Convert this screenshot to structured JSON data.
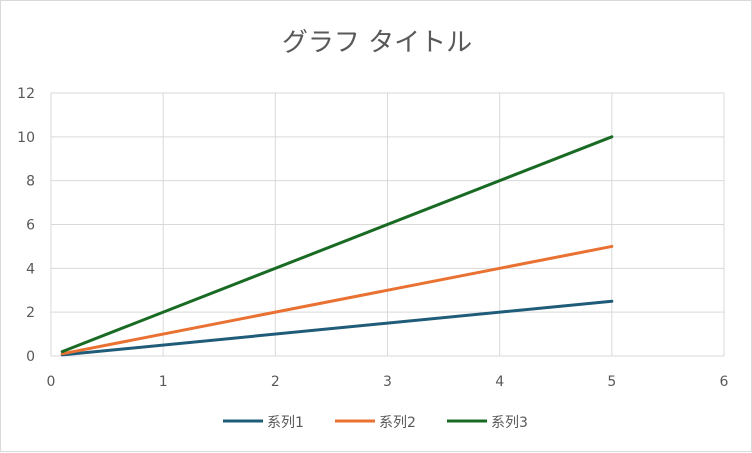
{
  "chart_data": {
    "type": "line",
    "title": "グラフ タイトル",
    "xlabel": "",
    "ylabel": "",
    "xlim": [
      0,
      6
    ],
    "ylim": [
      0,
      12
    ],
    "x_ticks": [
      0,
      1,
      2,
      3,
      4,
      5,
      6
    ],
    "y_ticks": [
      0,
      2,
      4,
      6,
      8,
      10,
      12
    ],
    "grid": true,
    "legend_position": "bottom",
    "series": [
      {
        "name": "系列1",
        "color": "#1f5c7a",
        "points": [
          [
            0.1,
            0.05
          ],
          [
            5,
            2.5
          ]
        ]
      },
      {
        "name": "系列2",
        "color": "#e97132",
        "points": [
          [
            0.1,
            0.1
          ],
          [
            5,
            5
          ]
        ]
      },
      {
        "name": "系列3",
        "color": "#196b24",
        "points": [
          [
            0.1,
            0.2
          ],
          [
            5,
            10
          ]
        ]
      }
    ]
  }
}
